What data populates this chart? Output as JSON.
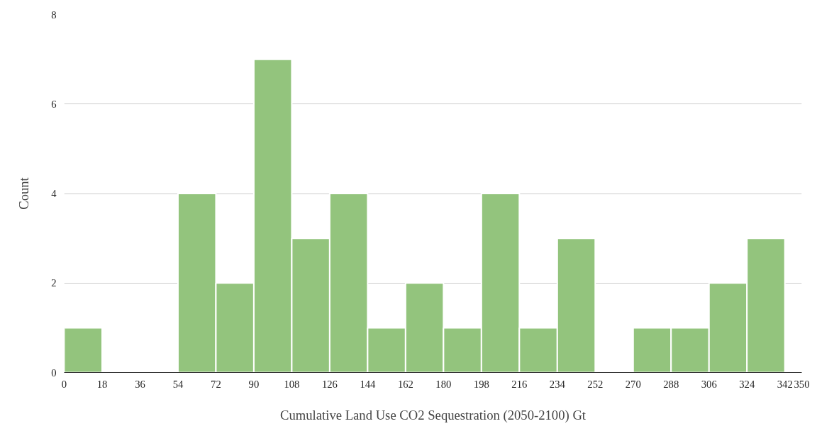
{
  "chart_data": {
    "type": "histogram",
    "xlabel": "Cumulative Land Use CO2 Sequestration (2050-2100) Gt",
    "ylabel": "Count",
    "bins": [
      0,
      18,
      36,
      54,
      72,
      90,
      108,
      126,
      144,
      162,
      180,
      198,
      216,
      234,
      252,
      270,
      288,
      306,
      324,
      342
    ],
    "values": [
      1,
      0,
      0,
      4,
      2,
      7,
      3,
      4,
      1,
      2,
      1,
      4,
      1,
      3,
      0,
      1,
      1,
      2,
      3
    ],
    "color": "#93c47d",
    "xlim": [
      0,
      350
    ],
    "xticks": [
      0,
      18,
      36,
      54,
      72,
      90,
      108,
      126,
      144,
      162,
      180,
      198,
      216,
      234,
      252,
      270,
      288,
      306,
      324,
      342,
      350
    ],
    "ylim": [
      0,
      8
    ],
    "yticks": [
      0,
      2,
      4,
      6,
      8
    ],
    "grid": "y"
  }
}
